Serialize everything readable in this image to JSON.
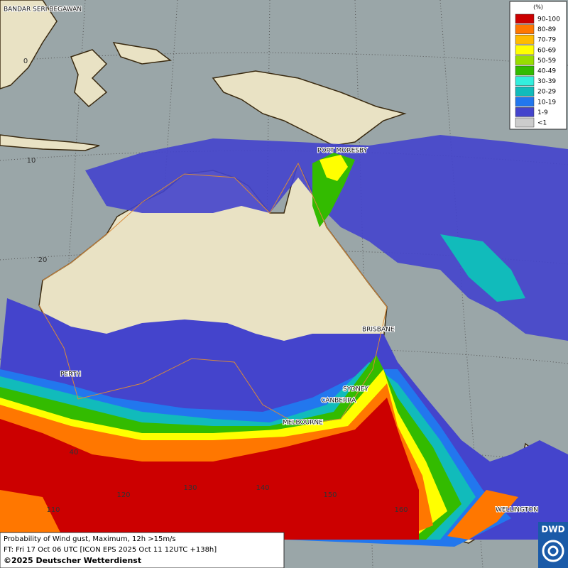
{
  "cities": [
    "BANDAR SERI BEGAWAN",
    "PORT MORESBY",
    "BRISBANE",
    "PERTH",
    "SYDNEY",
    "CANBERRA",
    "MELBOURNE",
    "WELLINGTON"
  ],
  "latitude_labels": [
    "0",
    "10",
    "20",
    "40"
  ],
  "longitude_labels": [
    "110",
    "120",
    "130",
    "140",
    "150",
    "160"
  ],
  "legend": {
    "title": "(%)",
    "items": [
      {
        "label": "90-100",
        "color": "#cc0000"
      },
      {
        "label": "80-89",
        "color": "#ff7700"
      },
      {
        "label": "70-79",
        "color": "#ffbb00"
      },
      {
        "label": "60-69",
        "color": "#ffff00"
      },
      {
        "label": "50-59",
        "color": "#99dd00"
      },
      {
        "label": "40-49",
        "color": "#33bb00"
      },
      {
        "label": "30-39",
        "color": "#33eedd"
      },
      {
        "label": "20-29",
        "color": "#11bbbb"
      },
      {
        "label": "10-19",
        "color": "#2277ee"
      },
      {
        "label": "1-9",
        "color": "#4444cc"
      },
      {
        "label": "<1",
        "color": "#aaaaaa"
      }
    ]
  },
  "footer": {
    "product": "Probability of Wind gust, Maximum, 12h >15m/s",
    "forecast": "FT: Fri 17 Oct 06 UTC [ICON EPS 2025 Oct 11 12UTC +138h]",
    "copyright": "©2025 Deutscher Wetterdienst"
  },
  "logo": "DWD"
}
